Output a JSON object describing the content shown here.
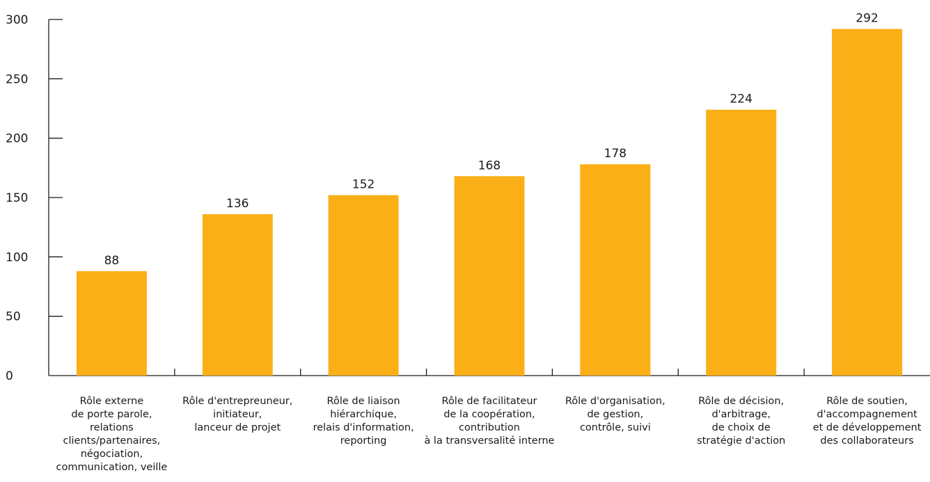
{
  "chart_data": {
    "type": "bar",
    "title": "",
    "xlabel": "",
    "ylabel": "",
    "ylim": [
      0,
      300
    ],
    "yticks": [
      0,
      50,
      100,
      150,
      200,
      250,
      300
    ],
    "grid": false,
    "legend": "none",
    "bar_color": "#FBAF17",
    "categories": [
      [
        "Rôle externe",
        "de porte parole,",
        "relations",
        "clients/partenaires,",
        "négociation,",
        "communication, veille"
      ],
      [
        "Rôle d'entrepreuneur,",
        "initiateur,",
        "lanceur de projet"
      ],
      [
        "Rôle de liaison",
        "hiérarchique,",
        "relais d'information,",
        "reporting"
      ],
      [
        "Rôle de facilitateur",
        "de la coopération,",
        "contribution",
        "à la transversalité interne"
      ],
      [
        "Rôle d'organisation,",
        "de gestion,",
        "contrôle, suivi"
      ],
      [
        "Rôle de décision,",
        "d'arbitrage,",
        "de choix de",
        "stratégie d'action"
      ],
      [
        "Rôle de soutien,",
        "d'accompagnement",
        "et de développement",
        "des collaborateurs"
      ]
    ],
    "values": [
      88,
      136,
      152,
      168,
      178,
      224,
      292
    ]
  }
}
